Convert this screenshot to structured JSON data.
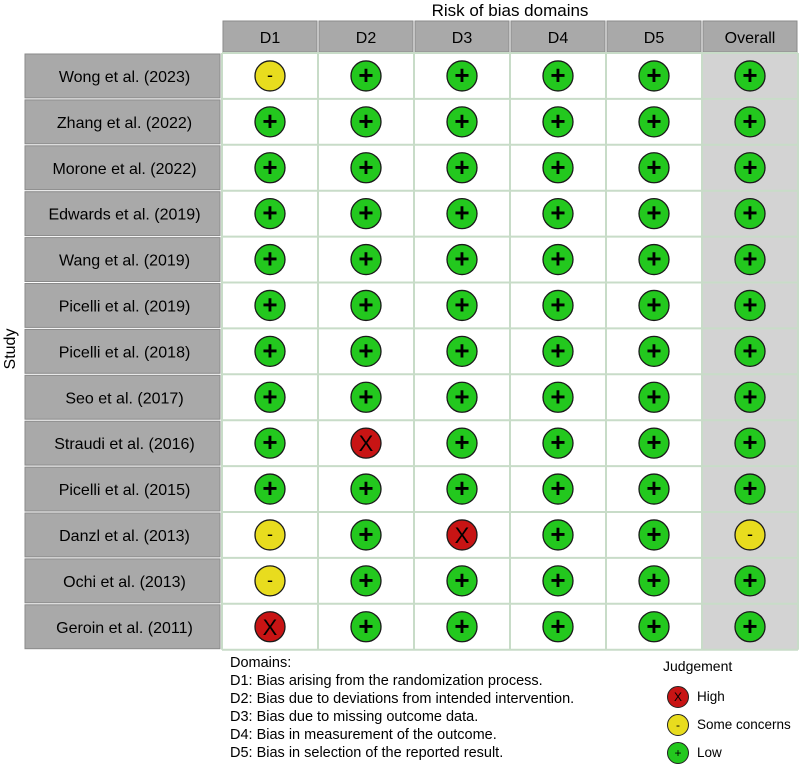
{
  "header": "Risk of bias domains",
  "y_axis_label": "Study",
  "columns": [
    "D1",
    "D2",
    "D3",
    "D4",
    "D5",
    "Overall"
  ],
  "studies": [
    {
      "name": "Wong et al. (2023)",
      "judgements": [
        "some",
        "low",
        "low",
        "low",
        "low",
        "low"
      ]
    },
    {
      "name": "Zhang et al. (2022)",
      "judgements": [
        "low",
        "low",
        "low",
        "low",
        "low",
        "low"
      ]
    },
    {
      "name": "Morone et al. (2022)",
      "judgements": [
        "low",
        "low",
        "low",
        "low",
        "low",
        "low"
      ]
    },
    {
      "name": "Edwards et al. (2019)",
      "judgements": [
        "low",
        "low",
        "low",
        "low",
        "low",
        "low"
      ]
    },
    {
      "name": "Wang et al. (2019)",
      "judgements": [
        "low",
        "low",
        "low",
        "low",
        "low",
        "low"
      ]
    },
    {
      "name": "Picelli et al. (2019)",
      "judgements": [
        "low",
        "low",
        "low",
        "low",
        "low",
        "low"
      ]
    },
    {
      "name": "Picelli et al. (2018)",
      "judgements": [
        "low",
        "low",
        "low",
        "low",
        "low",
        "low"
      ]
    },
    {
      "name": "Seo et al. (2017)",
      "judgements": [
        "low",
        "low",
        "low",
        "low",
        "low",
        "low"
      ]
    },
    {
      "name": "Straudi et al. (2016)",
      "judgements": [
        "low",
        "high",
        "low",
        "low",
        "low",
        "low"
      ]
    },
    {
      "name": "Picelli et al. (2015)",
      "judgements": [
        "low",
        "low",
        "low",
        "low",
        "low",
        "low"
      ]
    },
    {
      "name": "Danzl et al. (2013)",
      "judgements": [
        "some",
        "low",
        "high",
        "low",
        "low",
        "some"
      ]
    },
    {
      "name": "Ochi et al. (2013)",
      "judgements": [
        "some",
        "low",
        "low",
        "low",
        "low",
        "low"
      ]
    },
    {
      "name": "Geroin et al. (2011)",
      "judgements": [
        "high",
        "low",
        "low",
        "low",
        "low",
        "low"
      ]
    }
  ],
  "domains_legend": {
    "title": "Domains:",
    "items": [
      "D1: Bias arising from the randomization process.",
      "D2: Bias due to deviations from intended intervention.",
      "D3: Bias due to missing outcome data.",
      "D4: Bias in measurement of the outcome.",
      "D5: Bias in selection of the reported result."
    ]
  },
  "judgement_legend": {
    "title": "Judgement",
    "items": [
      {
        "key": "high",
        "symbol": "X",
        "label": "High"
      },
      {
        "key": "some",
        "symbol": "-",
        "label": "Some concerns"
      },
      {
        "key": "low",
        "symbol": "+",
        "label": "Low"
      }
    ]
  },
  "judgement_styles": {
    "high": {
      "symbol": "X",
      "color": "#c81414"
    },
    "some": {
      "symbol": "-",
      "color": "#e8dc1e"
    },
    "low": {
      "symbol": "+",
      "color": "#23c81e"
    }
  },
  "colors": {
    "header_fill": "#a9a9a9",
    "study_fill": "#a9a9a9",
    "overall_fill": "#d3d3d3",
    "cell_fill": "#ffffff",
    "grid_line": "#c8dcc8"
  }
}
